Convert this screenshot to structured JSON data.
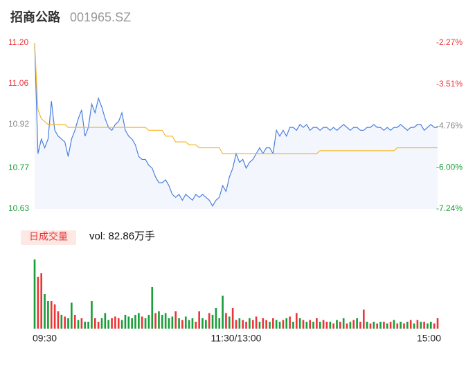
{
  "chart_data": [
    {
      "type": "line",
      "title": "招商公路",
      "subtitle": "001965.SZ",
      "x": [
        0,
        2,
        4,
        6,
        8,
        10,
        12,
        14,
        16,
        18,
        20,
        22,
        24,
        26,
        28,
        30,
        32,
        34,
        36,
        38,
        40,
        42,
        44,
        46,
        48,
        50,
        52,
        54,
        56,
        58,
        60,
        62,
        64,
        66,
        68,
        70,
        72,
        74,
        76,
        78,
        80,
        82,
        84,
        86,
        88,
        90,
        92,
        94,
        96,
        98,
        100,
        102,
        104,
        106,
        108,
        110,
        112,
        114,
        116,
        118,
        120,
        122,
        124,
        126,
        128,
        130,
        132,
        134,
        136,
        138,
        140,
        142,
        144,
        146,
        148,
        150,
        152,
        154,
        156,
        158,
        160,
        162,
        164,
        166,
        168,
        170,
        172,
        174,
        176,
        178,
        180,
        182,
        184,
        186,
        188,
        190,
        192,
        194,
        196,
        198,
        200,
        202,
        204,
        206,
        208,
        210,
        212,
        214,
        216,
        218,
        220,
        222,
        224,
        226,
        228,
        230,
        232,
        234,
        236,
        238,
        240
      ],
      "series": [
        {
          "name": "price",
          "color": "#4a7fe0",
          "values": [
            11.2,
            10.82,
            10.87,
            10.84,
            10.87,
            11.0,
            10.9,
            10.88,
            10.87,
            10.86,
            10.81,
            10.87,
            10.9,
            10.94,
            10.97,
            10.88,
            10.91,
            10.99,
            10.96,
            11.01,
            10.98,
            10.94,
            10.91,
            10.9,
            10.92,
            10.93,
            10.96,
            10.9,
            10.88,
            10.87,
            10.85,
            10.81,
            10.8,
            10.8,
            10.78,
            10.77,
            10.74,
            10.72,
            10.72,
            10.73,
            10.71,
            10.68,
            10.67,
            10.68,
            10.66,
            10.68,
            10.67,
            10.66,
            10.68,
            10.67,
            10.68,
            10.67,
            10.66,
            10.64,
            10.66,
            10.67,
            10.71,
            10.69,
            10.74,
            10.77,
            10.82,
            10.79,
            10.8,
            10.77,
            10.79,
            10.8,
            10.82,
            10.84,
            10.82,
            10.84,
            10.84,
            10.82,
            10.9,
            10.88,
            10.9,
            10.88,
            10.91,
            10.91,
            10.9,
            10.92,
            10.91,
            10.92,
            10.9,
            10.91,
            10.91,
            10.9,
            10.91,
            10.91,
            10.9,
            10.91,
            10.9,
            10.91,
            10.92,
            10.91,
            10.9,
            10.91,
            10.91,
            10.9,
            10.9,
            10.91,
            10.91,
            10.92,
            10.91,
            10.91,
            10.9,
            10.91,
            10.9,
            10.91,
            10.91,
            10.92,
            10.91,
            10.9,
            10.91,
            10.91,
            10.92,
            10.92,
            10.9,
            10.91,
            10.92,
            10.91,
            10.91
          ]
        },
        {
          "name": "average",
          "color": "#f5b82e",
          "values": [
            11.2,
            10.97,
            10.94,
            10.93,
            10.92,
            10.92,
            10.92,
            10.92,
            10.92,
            10.92,
            10.91,
            10.91,
            10.91,
            10.91,
            10.91,
            10.91,
            10.91,
            10.91,
            10.91,
            10.91,
            10.91,
            10.91,
            10.91,
            10.91,
            10.91,
            10.91,
            10.91,
            10.91,
            10.91,
            10.91,
            10.91,
            10.91,
            10.91,
            10.91,
            10.9,
            10.9,
            10.9,
            10.9,
            10.9,
            10.88,
            10.88,
            10.88,
            10.86,
            10.86,
            10.86,
            10.86,
            10.85,
            10.85,
            10.85,
            10.84,
            10.84,
            10.84,
            10.84,
            10.84,
            10.84,
            10.84,
            10.82,
            10.82,
            10.82,
            10.82,
            10.82,
            10.82,
            10.82,
            10.82,
            10.82,
            10.82,
            10.82,
            10.82,
            10.82,
            10.82,
            10.82,
            10.82,
            10.82,
            10.82,
            10.82,
            10.82,
            10.82,
            10.82,
            10.82,
            10.82,
            10.82,
            10.82,
            10.82,
            10.82,
            10.82,
            10.83,
            10.83,
            10.83,
            10.83,
            10.83,
            10.83,
            10.83,
            10.83,
            10.83,
            10.83,
            10.83,
            10.83,
            10.83,
            10.83,
            10.83,
            10.83,
            10.83,
            10.83,
            10.83,
            10.83,
            10.83,
            10.83,
            10.83,
            10.84,
            10.84,
            10.84,
            10.84,
            10.84,
            10.84,
            10.84,
            10.84,
            10.84,
            10.84,
            10.84,
            10.84,
            10.84
          ]
        }
      ],
      "xlim": [
        0,
        240
      ],
      "ylim": [
        10.63,
        11.2
      ],
      "yticks": [
        {
          "value": 11.2,
          "label": "11.20"
        },
        11.06,
        10.92,
        10.77,
        10.63
      ],
      "ytick_colors": [
        "#e8363a",
        "#e8363a",
        "#888888",
        "#1a9e3a",
        "#1a9e3a"
      ],
      "y2lim": [
        -7.24,
        -2.27
      ],
      "y2ticks": [
        {
          "value": -2.27,
          "label": "-2.27%"
        },
        {
          "value": -3.51,
          "label": "-3.51%"
        },
        {
          "value": -4.76,
          "label": "-4.76%"
        },
        {
          "value": -6.0,
          "label": "-6.00%"
        },
        {
          "value": -7.24,
          "label": "-7.24%"
        }
      ],
      "y2tick_colors": [
        "#e8363a",
        "#e8363a",
        "#888888",
        "#1a9e3a",
        "#1a9e3a"
      ],
      "grid": false
    },
    {
      "type": "bar",
      "label": "日成交量",
      "annotation": "vol: 82.86万手",
      "x": [
        0,
        2,
        4,
        6,
        8,
        10,
        12,
        14,
        16,
        18,
        20,
        22,
        24,
        26,
        28,
        30,
        32,
        34,
        36,
        38,
        40,
        42,
        44,
        46,
        48,
        50,
        52,
        54,
        56,
        58,
        60,
        62,
        64,
        66,
        68,
        70,
        72,
        74,
        76,
        78,
        80,
        82,
        84,
        86,
        88,
        90,
        92,
        94,
        96,
        98,
        100,
        102,
        104,
        106,
        108,
        110,
        112,
        114,
        116,
        118,
        120,
        122,
        124,
        126,
        128,
        130,
        132,
        134,
        136,
        138,
        140,
        142,
        144,
        146,
        148,
        150,
        152,
        154,
        156,
        158,
        160,
        162,
        164,
        166,
        168,
        170,
        172,
        174,
        176,
        178,
        180,
        182,
        184,
        186,
        188,
        190,
        192,
        194,
        196,
        198,
        200,
        202,
        204,
        206,
        208,
        210,
        212,
        214,
        216,
        218,
        220,
        222,
        224,
        226,
        228,
        230,
        232,
        234,
        236,
        238,
        240
      ],
      "values": [
        2.0,
        1.5,
        1.6,
        1.0,
        0.8,
        0.8,
        0.7,
        0.5,
        0.4,
        0.35,
        0.3,
        0.75,
        0.4,
        0.25,
        0.3,
        0.2,
        0.2,
        0.8,
        0.3,
        0.2,
        0.3,
        0.45,
        0.25,
        0.3,
        0.35,
        0.3,
        0.25,
        0.4,
        0.35,
        0.3,
        0.4,
        0.45,
        0.35,
        0.3,
        0.4,
        1.2,
        0.45,
        0.5,
        0.4,
        0.45,
        0.3,
        0.35,
        0.5,
        0.3,
        0.25,
        0.35,
        0.25,
        0.3,
        0.2,
        0.5,
        0.3,
        0.25,
        0.45,
        0.4,
        0.6,
        0.3,
        0.95,
        0.45,
        0.35,
        0.6,
        0.25,
        0.3,
        0.25,
        0.2,
        0.3,
        0.25,
        0.35,
        0.2,
        0.3,
        0.25,
        0.2,
        0.3,
        0.25,
        0.2,
        0.25,
        0.3,
        0.35,
        0.2,
        0.45,
        0.3,
        0.25,
        0.2,
        0.25,
        0.2,
        0.3,
        0.2,
        0.25,
        0.2,
        0.2,
        0.15,
        0.25,
        0.2,
        0.3,
        0.15,
        0.2,
        0.25,
        0.3,
        0.2,
        0.55,
        0.2,
        0.15,
        0.2,
        0.15,
        0.2,
        0.2,
        0.15,
        0.2,
        0.25,
        0.15,
        0.2,
        0.15,
        0.2,
        0.25,
        0.15,
        0.25,
        0.2,
        0.2,
        0.15,
        0.2,
        0.15,
        0.3
      ],
      "colors": [
        "#1a9e3a",
        "#e8363a",
        "#e8363a",
        "#1a9e3a",
        "#1a9e3a",
        "#e8363a",
        "#e8363a",
        "#e8363a",
        "#1a9e3a",
        "#e8363a",
        "#1a9e3a",
        "#1a9e3a",
        "#e8363a",
        "#1a9e3a",
        "#e8363a",
        "#1a9e3a",
        "#1a9e3a",
        "#1a9e3a",
        "#e8363a",
        "#e8363a",
        "#1a9e3a",
        "#1a9e3a",
        "#1a9e3a",
        "#e8363a",
        "#e8363a",
        "#e8363a",
        "#1a9e3a",
        "#1a9e3a",
        "#1a9e3a",
        "#1a9e3a",
        "#1a9e3a",
        "#1a9e3a",
        "#e8363a",
        "#1a9e3a",
        "#1a9e3a",
        "#1a9e3a",
        "#e8363a",
        "#1a9e3a",
        "#1a9e3a",
        "#1a9e3a",
        "#1a9e3a",
        "#1a9e3a",
        "#e8363a",
        "#1a9e3a",
        "#e8363a",
        "#1a9e3a",
        "#1a9e3a",
        "#1a9e3a",
        "#e8363a",
        "#e8363a",
        "#1a9e3a",
        "#1a9e3a",
        "#e8363a",
        "#1a9e3a",
        "#1a9e3a",
        "#1a9e3a",
        "#1a9e3a",
        "#e8363a",
        "#1a9e3a",
        "#e8363a",
        "#e8363a",
        "#1a9e3a",
        "#e8363a",
        "#e8363a",
        "#1a9e3a",
        "#e8363a",
        "#e8363a",
        "#1a9e3a",
        "#e8363a",
        "#e8363a",
        "#1a9e3a",
        "#e8363a",
        "#1a9e3a",
        "#1a9e3a",
        "#e8363a",
        "#1a9e3a",
        "#e8363a",
        "#1a9e3a",
        "#e8363a",
        "#1a9e3a",
        "#e8363a",
        "#1a9e3a",
        "#e8363a",
        "#1a9e3a",
        "#e8363a",
        "#1a9e3a",
        "#e8363a",
        "#e8363a",
        "#1a9e3a",
        "#e8363a",
        "#1a9e3a",
        "#e8363a",
        "#1a9e3a",
        "#e8363a",
        "#1a9e3a",
        "#e8363a",
        "#1a9e3a",
        "#e8363a",
        "#e8363a",
        "#1a9e3a",
        "#e8363a",
        "#1a9e3a",
        "#e8363a",
        "#1a9e3a",
        "#e8363a",
        "#1a9e3a",
        "#e8363a",
        "#1a9e3a",
        "#e8363a",
        "#1a9e3a",
        "#e8363a",
        "#1a9e3a",
        "#e8363a",
        "#1a9e3a",
        "#e8363a",
        "#1a9e3a",
        "#e8363a",
        "#1a9e3a",
        "#1a9e3a",
        "#e8363a",
        "#e8363a"
      ],
      "xlim": [
        0,
        240
      ],
      "ylim": [
        0,
        2.0
      ],
      "xticks": [
        {
          "value": 0,
          "label": "09:30"
        },
        {
          "value": 120,
          "label": "11:30/13:00"
        },
        {
          "value": 240,
          "label": "15:00"
        }
      ]
    }
  ]
}
